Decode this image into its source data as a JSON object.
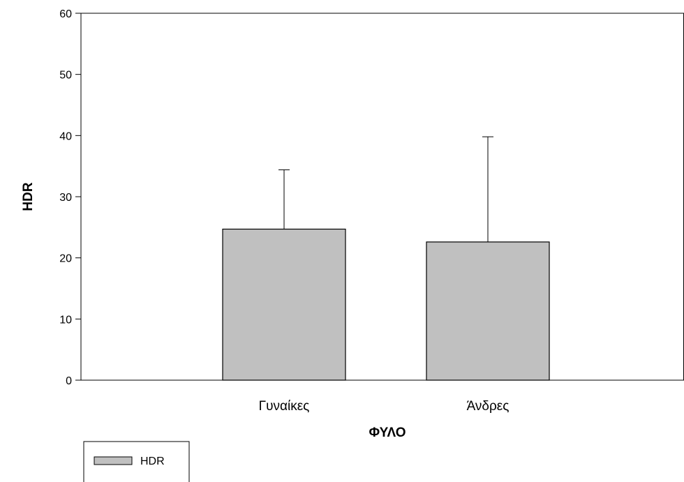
{
  "chart_data": {
    "type": "bar",
    "categories": [
      "Γυναίκες",
      "Άνδρες"
    ],
    "series": [
      {
        "name": "HDR",
        "values": [
          24.7,
          22.6
        ],
        "error_upper": [
          34.4,
          39.8
        ]
      }
    ],
    "xlabel": "ΦΥΛΟ",
    "ylabel": "HDR",
    "ylim": [
      0,
      60
    ],
    "yticks": [
      0,
      10,
      20,
      30,
      40,
      50,
      60
    ],
    "grid": false,
    "legend": "bottom-left",
    "colors": {
      "bar_fill": "#c0c0c0",
      "bar_stroke": "#000000",
      "axis": "#000000"
    }
  }
}
